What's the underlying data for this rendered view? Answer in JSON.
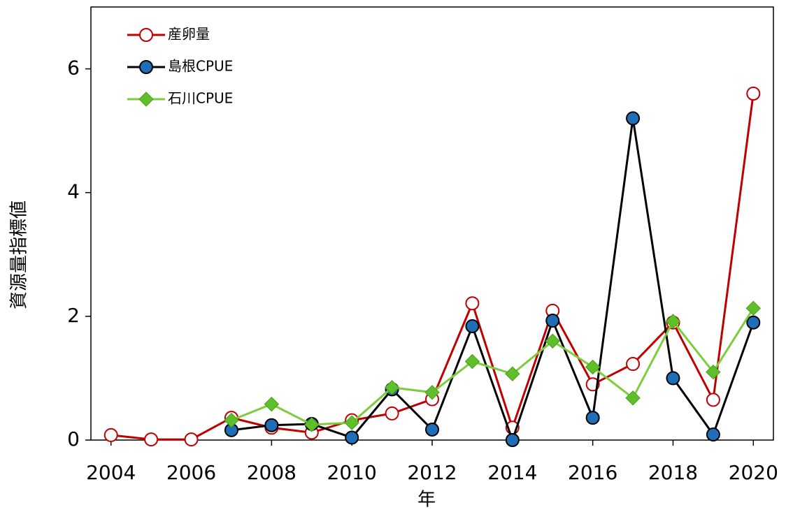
{
  "chart_data": {
    "type": "line",
    "x": [
      2004,
      2005,
      2006,
      2007,
      2008,
      2009,
      2010,
      2011,
      2012,
      2013,
      2014,
      2015,
      2016,
      2017,
      2018,
      2019,
      2020
    ],
    "series": [
      {
        "name": "産卵量",
        "color": "#c00000",
        "marker": "circle",
        "marker_fill": "#ffffff",
        "values": [
          0.08,
          0.01,
          0.01,
          0.36,
          0.2,
          0.12,
          0.32,
          0.43,
          0.66,
          2.21,
          0.2,
          2.09,
          0.9,
          1.23,
          1.9,
          0.65,
          5.6
        ]
      },
      {
        "name": "島根CPUE",
        "color": "#000000",
        "marker": "circle",
        "marker_fill": "#1f6fb8",
        "values": [
          null,
          null,
          null,
          0.16,
          0.24,
          0.26,
          0.04,
          0.82,
          0.17,
          1.84,
          0.0,
          1.93,
          0.36,
          5.2,
          1.0,
          0.09,
          1.9
        ]
      },
      {
        "name": "石川CPUE",
        "color": "#7ccd3c",
        "marker": "diamond",
        "marker_fill": "#5fbf2a",
        "values": [
          null,
          null,
          null,
          0.32,
          0.58,
          0.25,
          0.28,
          0.85,
          0.77,
          1.27,
          1.07,
          1.6,
          1.18,
          0.68,
          1.92,
          1.1,
          2.13
        ]
      }
    ],
    "xlabel": "年",
    "ylabel": "資源量指標値",
    "xlim": [
      2003.5,
      2020.5
    ],
    "xticks": [
      2004,
      2006,
      2008,
      2010,
      2012,
      2014,
      2016,
      2018,
      2020
    ],
    "ylim": [
      0,
      7
    ],
    "yticks": [
      0,
      2,
      4,
      6
    ],
    "legend": "upper-left"
  }
}
